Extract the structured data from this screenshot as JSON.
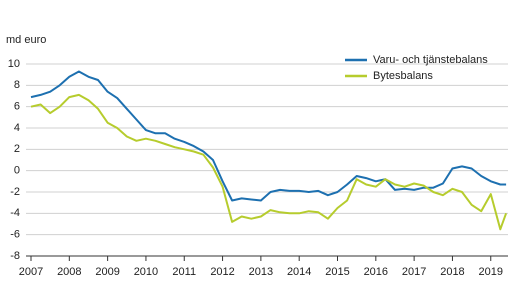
{
  "chart_data": {
    "type": "line",
    "y_label": "md euro",
    "x": [
      2007,
      2007.25,
      2007.5,
      2007.75,
      2008,
      2008.25,
      2008.5,
      2008.75,
      2009,
      2009.25,
      2009.5,
      2009.75,
      2010,
      2010.25,
      2010.5,
      2010.75,
      2011,
      2011.25,
      2011.5,
      2011.75,
      2012,
      2012.25,
      2012.5,
      2012.75,
      2013,
      2013.25,
      2013.5,
      2013.75,
      2014,
      2014.25,
      2014.5,
      2014.75,
      2015,
      2015.25,
      2015.5,
      2015.75,
      2016,
      2016.25,
      2016.5,
      2016.75,
      2017,
      2017.25,
      2017.5,
      2017.75,
      2018,
      2018.25,
      2018.5,
      2018.75,
      2019,
      2019.25,
      2019.4
    ],
    "series": [
      {
        "name": "Varu- och tjänstebalans",
        "color": "#1d70b0",
        "values": [
          6.9,
          7.1,
          7.4,
          8.0,
          8.8,
          9.3,
          8.8,
          8.5,
          7.4,
          6.8,
          5.8,
          4.8,
          3.8,
          3.5,
          3.5,
          3.0,
          2.7,
          2.3,
          1.8,
          1.0,
          -1.0,
          -2.8,
          -2.6,
          -2.7,
          -2.8,
          -2.0,
          -1.8,
          -1.9,
          -1.9,
          -2.0,
          -1.9,
          -2.3,
          -2.0,
          -1.3,
          -0.5,
          -0.7,
          -1.0,
          -0.8,
          -1.8,
          -1.7,
          -1.8,
          -1.6,
          -1.6,
          -1.2,
          0.2,
          0.4,
          0.2,
          -0.5,
          -1.0,
          -1.3,
          -1.3
        ]
      },
      {
        "name": "Bytesbalans",
        "color": "#b6cc2d",
        "values": [
          6.0,
          6.2,
          5.4,
          6.0,
          6.9,
          7.1,
          6.6,
          5.8,
          4.5,
          4.0,
          3.2,
          2.8,
          3.0,
          2.8,
          2.5,
          2.2,
          2.0,
          1.8,
          1.5,
          0.3,
          -1.5,
          -4.8,
          -4.3,
          -4.5,
          -4.3,
          -3.7,
          -3.9,
          -4.0,
          -4.0,
          -3.8,
          -3.9,
          -4.5,
          -3.5,
          -2.8,
          -0.8,
          -1.3,
          -1.5,
          -0.8,
          -1.3,
          -1.5,
          -1.2,
          -1.4,
          -2.0,
          -2.3,
          -1.7,
          -2.0,
          -3.2,
          -3.8,
          -2.2,
          -5.5,
          -4.0
        ]
      }
    ],
    "xlim": [
      2007,
      2019.45
    ],
    "xticks": [
      2007,
      2008,
      2009,
      2010,
      2011,
      2012,
      2013,
      2014,
      2015,
      2016,
      2017,
      2018,
      2019
    ],
    "ylim": [
      -8,
      10
    ],
    "yticks": [
      -8,
      -6,
      -4,
      -2,
      0,
      2,
      4,
      6,
      8,
      10
    ],
    "grid": true,
    "legend": "upper right"
  }
}
